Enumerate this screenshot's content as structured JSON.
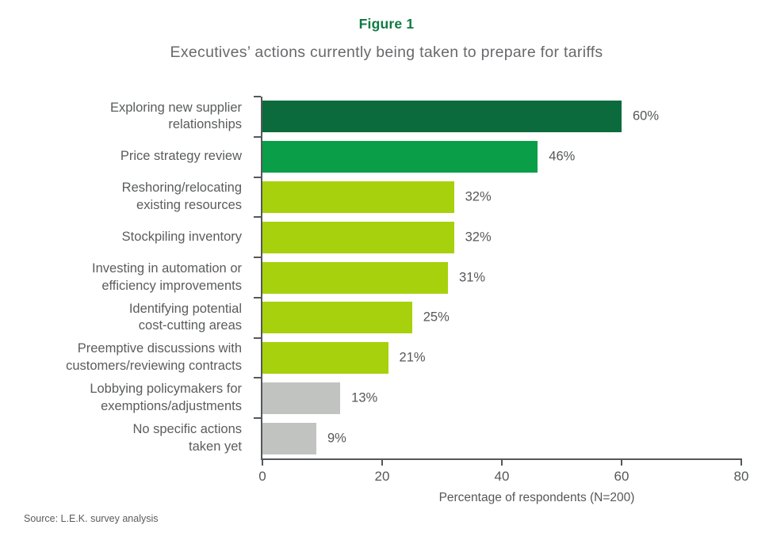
{
  "figure": {
    "label": "Figure 1",
    "title": "Executives’ actions currently being taken to prepare for tariffs"
  },
  "chart_data": {
    "type": "bar",
    "orientation": "horizontal",
    "categories": [
      "Exploring new supplier\nrelationships",
      "Price strategy review",
      "Reshoring/relocating\nexisting resources",
      "Stockpiling inventory",
      "Investing in automation or\nefficiency improvements",
      "Identifying potential\ncost-cutting areas",
      "Preemptive discussions with\ncustomers/reviewing contracts",
      "Lobbying policymakers for\nexemptions/adjustments",
      "No specific actions\ntaken yet"
    ],
    "values": [
      60,
      46,
      32,
      32,
      31,
      25,
      21,
      13,
      9
    ],
    "value_labels": [
      "60%",
      "46%",
      "32%",
      "32%",
      "31%",
      "25%",
      "21%",
      "13%",
      "9%"
    ],
    "bar_colors": [
      "#0c6b3c",
      "#0a9e49",
      "#a7d10d",
      "#a7d10d",
      "#a7d10d",
      "#a7d10d",
      "#a7d10d",
      "#c1c3c1",
      "#c1c3c1"
    ],
    "xlabel": "Percentage of respondents (N=200)",
    "xlim": [
      0,
      80
    ],
    "xticks": [
      0,
      20,
      40,
      60,
      80
    ],
    "grid": false,
    "legend": false
  },
  "colors": {
    "title_green": "#0e7a43",
    "subtitle_gray": "#68696c",
    "axis_gray": "#55575a",
    "label_gray": "#5a5c5e"
  },
  "source": "Source: L.E.K. survey analysis"
}
